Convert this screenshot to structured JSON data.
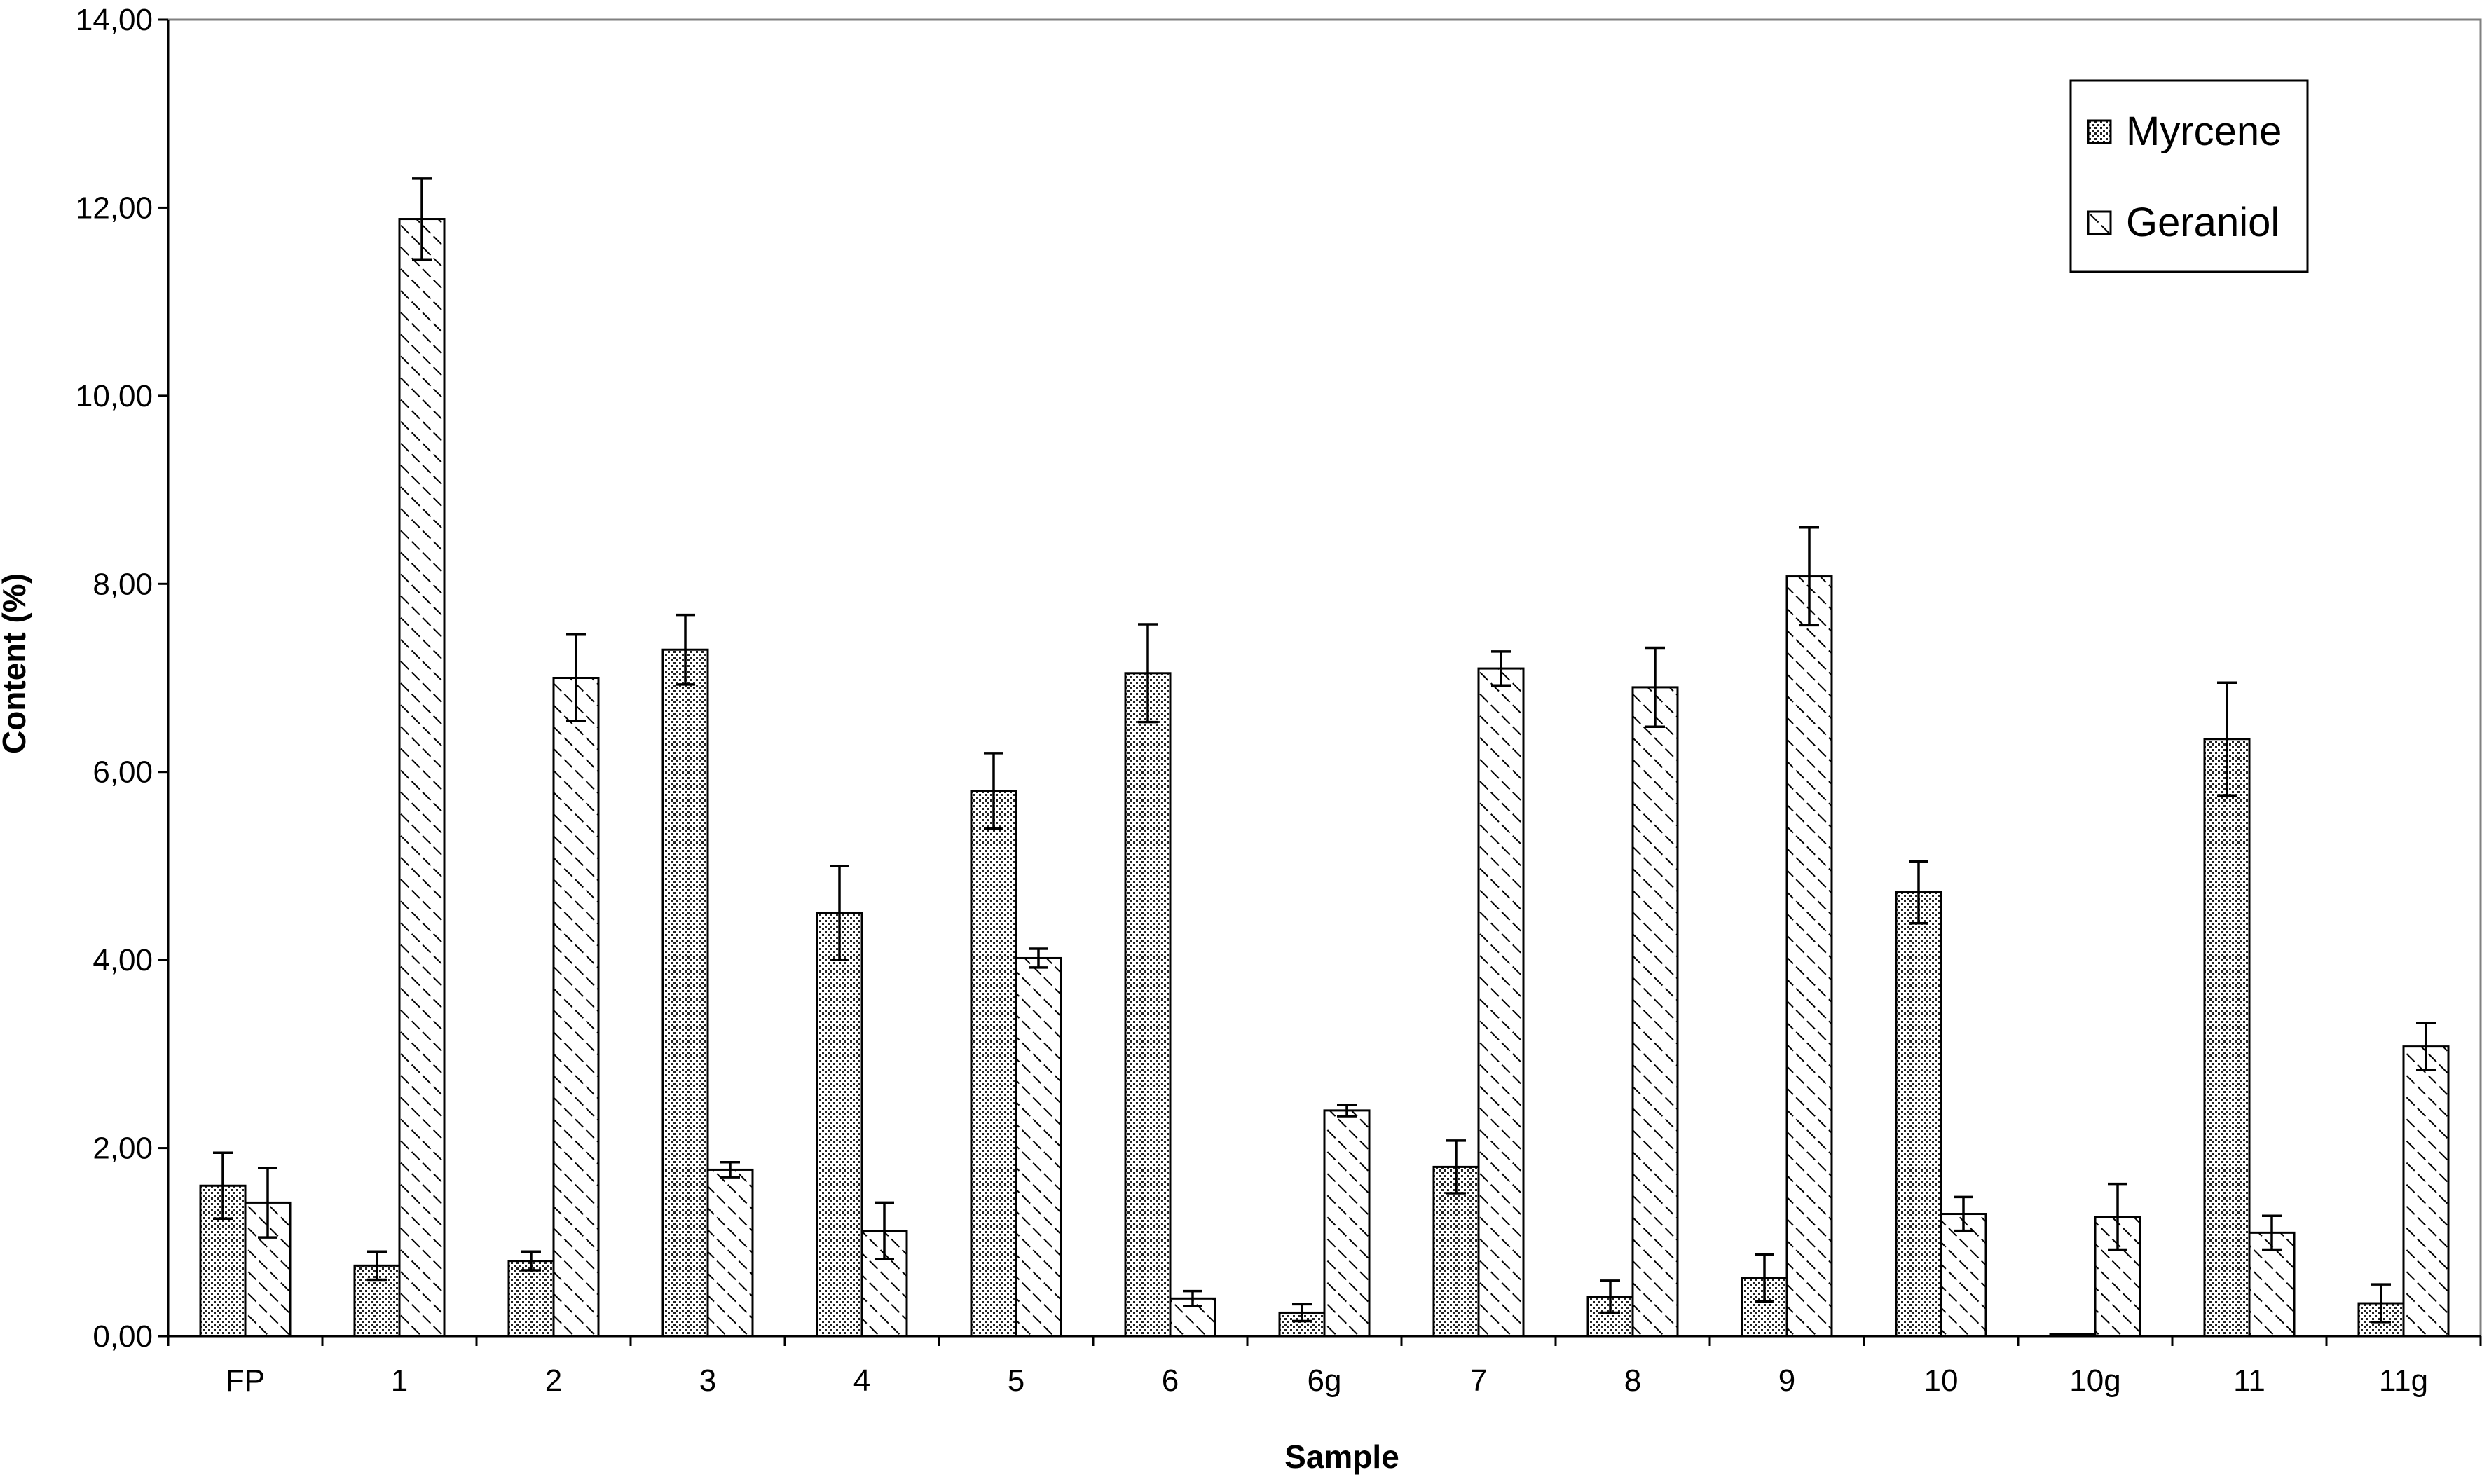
{
  "chart_data": {
    "type": "bar",
    "xlabel": "Sample",
    "ylabel": "Content (%)",
    "ylim": [
      0,
      14
    ],
    "y_ticks": [
      "0,00",
      "2,00",
      "4,00",
      "6,00",
      "8,00",
      "10,00",
      "12,00",
      "14,00"
    ],
    "y_tick_values": [
      0,
      2,
      4,
      6,
      8,
      10,
      12,
      14
    ],
    "grid": false,
    "legend_position": "top-right",
    "categories": [
      "FP",
      "1",
      "2",
      "3",
      "4",
      "5",
      "6",
      "6g",
      "7",
      "8",
      "9",
      "10",
      "10g",
      "11",
      "11g"
    ],
    "series": [
      {
        "name": "Myrcene",
        "pattern": "dots",
        "values": [
          1.6,
          0.75,
          0.8,
          7.3,
          4.5,
          5.8,
          7.05,
          0.25,
          1.8,
          0.42,
          0.62,
          4.72,
          0.02,
          6.35,
          0.35
        ],
        "errors": [
          0.35,
          0.15,
          0.1,
          0.37,
          0.5,
          0.4,
          0.52,
          0.09,
          0.28,
          0.17,
          0.25,
          0.33,
          0.0,
          0.6,
          0.2
        ]
      },
      {
        "name": "Geraniol",
        "pattern": "diagonal",
        "values": [
          1.42,
          11.88,
          7.0,
          1.77,
          1.12,
          4.02,
          0.4,
          2.4,
          7.1,
          6.9,
          8.08,
          1.3,
          1.27,
          1.1,
          3.08
        ]
      }
    ],
    "geraniol_errors": [
      0.37,
      0.43,
      0.46,
      0.08,
      0.3,
      0.1,
      0.08,
      0.06,
      0.18,
      0.42,
      0.52,
      0.18,
      0.35,
      0.18,
      0.25
    ]
  }
}
